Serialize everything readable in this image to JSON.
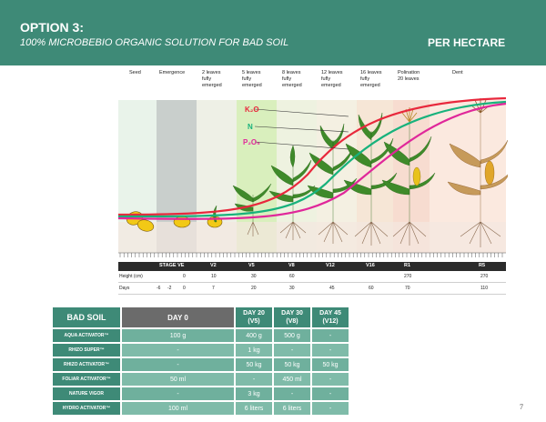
{
  "header": {
    "option": "OPTION 3:",
    "subtitle": "100% MICROBEBIO ORGANIC SOLUTION FOR BAD SOIL",
    "per_hectare": "PER HECTARE"
  },
  "stages_top": [
    {
      "label": "Seed"
    },
    {
      "label": "Emergence"
    },
    {
      "label": "2 leaves\nfufly\nemerged"
    },
    {
      "label": "5 leaves\nfufly\nemerged"
    },
    {
      "label": "8 leaves\nfufly\nemerged"
    },
    {
      "label": "12 leaves\nfufly\nemerged"
    },
    {
      "label": "16 leaves\nfufly\nemerged"
    },
    {
      "label": "Polination\n20 leaves"
    },
    {
      "label": "Dent"
    }
  ],
  "nutrients": {
    "k2o": "K₂O",
    "n": "N",
    "p2o5": "P₂O₅",
    "k2o_color": "#e8283c",
    "n_color": "#18b27c",
    "p2o5_color": "#e0279a"
  },
  "stage_bar": [
    "STAGE VE",
    "V2",
    "V5",
    "V8",
    "V12",
    "V16",
    "R1",
    "R5"
  ],
  "height_row": {
    "label": "Height (cm)",
    "values": [
      "0",
      "10",
      "30",
      "60",
      "270",
      "270"
    ]
  },
  "days_row": {
    "label": "Days",
    "values": [
      "-6",
      "-2",
      "0",
      "7",
      "20",
      "30",
      "45",
      "60",
      "70",
      "110"
    ]
  },
  "table": {
    "title": "BAD SOIL",
    "col_day0": "DAY 0",
    "col_day20": "DAY 20\n(V5)",
    "col_day30": "DAY 30\n(V8)",
    "col_day45": "DAY 45\n(V12)",
    "rows": [
      {
        "name": "AQUA ACTIVATOR™",
        "d0": "100 g",
        "d20": "400 g",
        "d30": "500 g",
        "d45": "-"
      },
      {
        "name": "RHIZO SUPER™",
        "d0": "-",
        "d20": "1 kg",
        "d30": "-",
        "d45": "-"
      },
      {
        "name": "RHIZO ACTIVATOR™",
        "d0": "-",
        "d20": "50 kg",
        "d30": "50 kg",
        "d45": "50 kg"
      },
      {
        "name": "FOLIAR ACTIVATOR™",
        "d0": "50 ml",
        "d20": "-",
        "d30": "450 ml",
        "d45": "-"
      },
      {
        "name": "NATURE VIGOR",
        "d0": "-",
        "d20": "3 kg",
        "d30": "-",
        "d45": "-"
      },
      {
        "name": "HYDRO ACTIVATOR™",
        "d0": "100 ml",
        "d20": "6 liters",
        "d30": "6 liters",
        "d45": "-"
      }
    ]
  },
  "page_number": "7"
}
